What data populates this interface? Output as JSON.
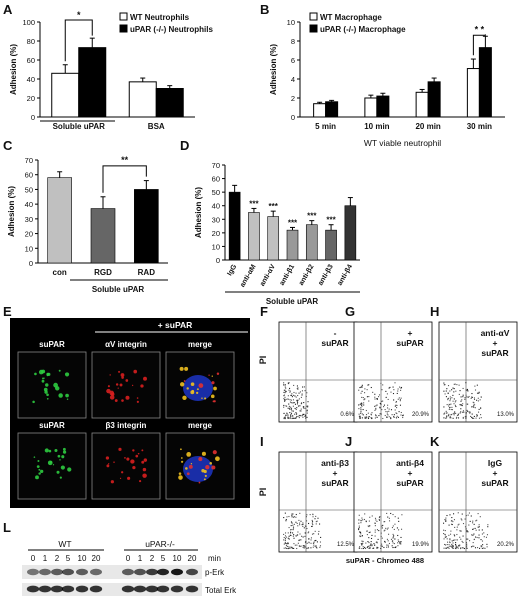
{
  "panel_letters": [
    "A",
    "B",
    "C",
    "D",
    "E",
    "F",
    "G",
    "H",
    "I",
    "J",
    "K",
    "L"
  ],
  "chart_data": [
    {
      "id": "A",
      "type": "bar",
      "ylabel": "Adhesion (%)",
      "ylim": [
        0,
        100
      ],
      "yticks": [
        "0",
        "20",
        "40",
        "60",
        "80",
        "100"
      ],
      "categories": [
        "Soluble uPAR",
        "BSA"
      ],
      "series": [
        {
          "name": "WT Neutrophils",
          "values": [
            46,
            37
          ],
          "err": [
            9,
            4
          ],
          "color": "#ffffff"
        },
        {
          "name": "uPAR (-/-) Neutrophils",
          "values": [
            73,
            30
          ],
          "err": [
            10,
            3
          ],
          "color": "#000000"
        }
      ],
      "significance": [
        "*"
      ]
    },
    {
      "id": "B",
      "type": "bar",
      "ylabel": "Adhesion (%)",
      "xlabel": "WT viable neutrophil",
      "ylim": [
        0,
        10
      ],
      "yticks": [
        "0",
        "2",
        "4",
        "6",
        "8",
        "10"
      ],
      "categories": [
        "5 min",
        "10 min",
        "20 min",
        "30 min"
      ],
      "series": [
        {
          "name": "WT Macrophage",
          "values": [
            1.4,
            2.0,
            2.6,
            5.1
          ],
          "err": [
            0.15,
            0.3,
            0.3,
            1.0
          ],
          "color": "#ffffff"
        },
        {
          "name": "uPAR (-/-) Macrophage",
          "values": [
            1.6,
            2.2,
            3.7,
            7.3
          ],
          "err": [
            0.15,
            0.3,
            0.4,
            1.2
          ],
          "color": "#000000"
        }
      ],
      "significance": [
        "* *"
      ]
    },
    {
      "id": "C",
      "type": "bar",
      "ylabel": "Adhesion (%)",
      "xlabel": "Soluble uPAR",
      "ylim": [
        0,
        70
      ],
      "yticks": [
        "0",
        "10",
        "20",
        "30",
        "40",
        "50",
        "60",
        "70"
      ],
      "categories": [
        "con",
        "RGD",
        "RAD"
      ],
      "values": [
        58,
        37,
        50
      ],
      "err": [
        4,
        8,
        6
      ],
      "colors": [
        "#c0c0c0",
        "#666666",
        "#000000"
      ],
      "significance": [
        "**"
      ]
    },
    {
      "id": "D",
      "type": "bar",
      "ylabel": "Adhesion (%)",
      "xlabel": "Soluble uPAR",
      "ylim": [
        0,
        70
      ],
      "yticks": [
        "0",
        "10",
        "20",
        "30",
        "40",
        "50",
        "60",
        "70"
      ],
      "categories": [
        "IgG",
        "anti-αM",
        "anti-αV",
        "anti-β1",
        "anti-β2",
        "anti-β3",
        "anti-β4"
      ],
      "values": [
        50,
        35,
        32,
        22,
        26,
        22,
        40
      ],
      "err": [
        5,
        3,
        4,
        2,
        3,
        4,
        6
      ],
      "colors": [
        "#000000",
        "#c0c0c0",
        "#c0c0c0",
        "#999999",
        "#999999",
        "#666666",
        "#333333"
      ],
      "stars": [
        "",
        "***",
        "***",
        "***",
        "***",
        "***",
        ""
      ]
    }
  ],
  "panel_E": {
    "header": "+ suPAR",
    "row1": [
      "suPAR",
      "αV  integrin",
      "merge"
    ],
    "row2": [
      "suPAR",
      "β3  integrin",
      "merge"
    ]
  },
  "flow": {
    "y_label": "PI",
    "x_label": "suPAR - Chromeo 488",
    "panels": [
      {
        "letter": "F",
        "label": "-\nsuPAR",
        "pct": "0.6%"
      },
      {
        "letter": "G",
        "label": "+\nsuPAR",
        "pct": "20.9%"
      },
      {
        "letter": "H",
        "label": "anti-αV\n+\nsuPAR",
        "pct": "13.0%"
      },
      {
        "letter": "I",
        "label": "anti-β3\n+\nsuPAR",
        "pct": "12.5%"
      },
      {
        "letter": "J",
        "label": "anti-β4\n+\nsuPAR",
        "pct": "19.9%"
      },
      {
        "letter": "K",
        "label": "IgG\n+\nsuPAR",
        "pct": "20.2%"
      }
    ]
  },
  "blot": {
    "groups": [
      "WT",
      "uPAR-/-"
    ],
    "times": [
      "0",
      "1",
      "2",
      "5",
      "10",
      "20"
    ],
    "unit": "min",
    "bands": [
      "p-Erk",
      "Total Erk"
    ]
  }
}
